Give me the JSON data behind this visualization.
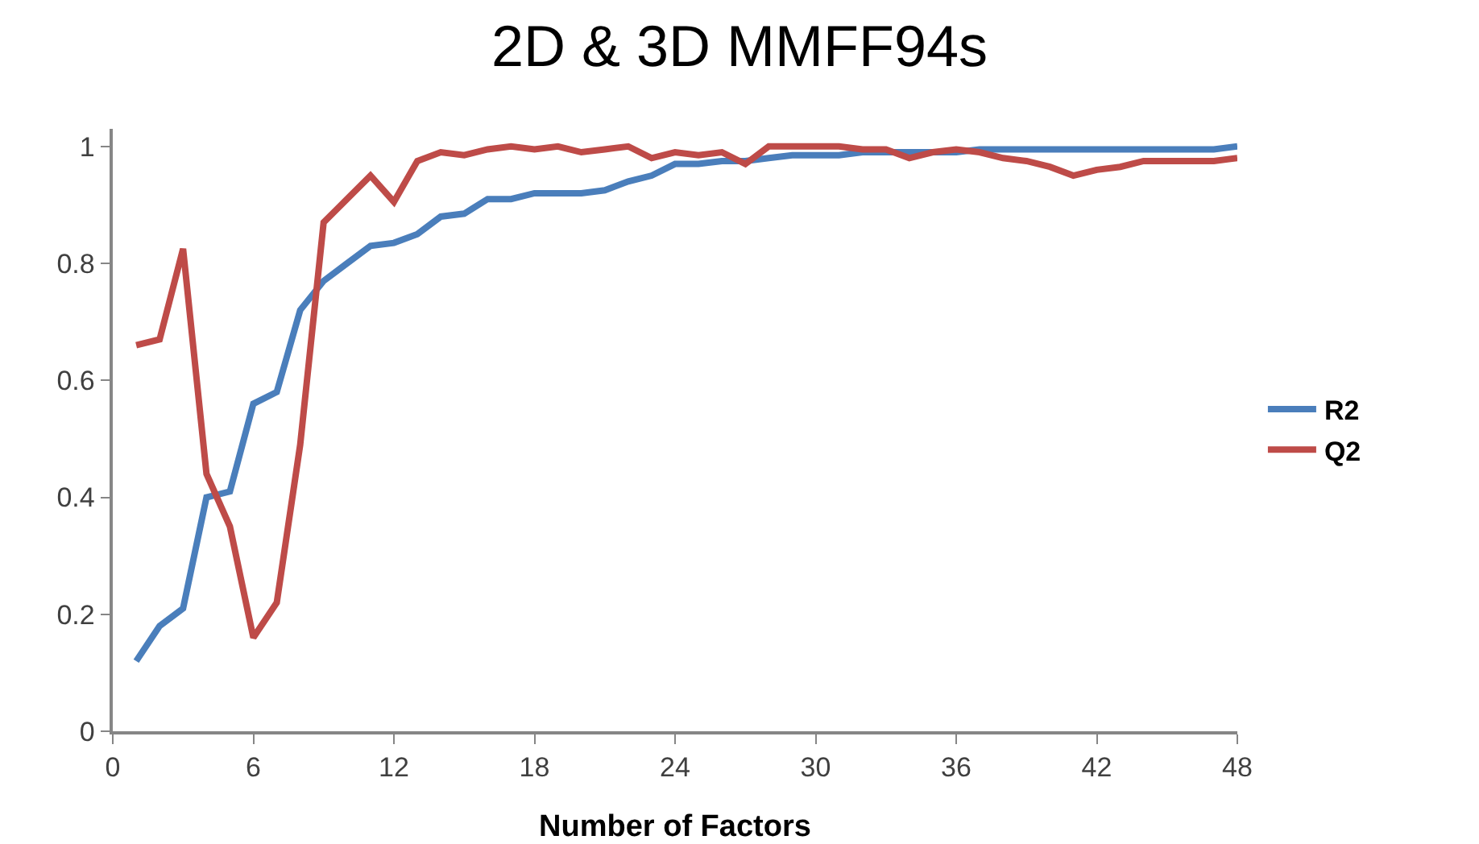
{
  "chart_data": {
    "type": "line",
    "title": "2D & 3D MMFF94s",
    "xlabel": "Number of Factors",
    "x": [
      1,
      2,
      3,
      4,
      5,
      6,
      7,
      8,
      9,
      10,
      11,
      12,
      13,
      14,
      15,
      16,
      17,
      18,
      19,
      20,
      21,
      22,
      23,
      24,
      25,
      26,
      27,
      28,
      29,
      30,
      31,
      32,
      33,
      34,
      35,
      36,
      37,
      38,
      39,
      40,
      41,
      42,
      43,
      44,
      45,
      46,
      47,
      48
    ],
    "series": [
      {
        "name": "R2",
        "color": "#4a7ebb",
        "values": [
          0.12,
          0.18,
          0.21,
          0.4,
          0.41,
          0.56,
          0.58,
          0.72,
          0.77,
          0.8,
          0.83,
          0.835,
          0.85,
          0.88,
          0.885,
          0.91,
          0.91,
          0.92,
          0.92,
          0.92,
          0.925,
          0.94,
          0.95,
          0.97,
          0.97,
          0.975,
          0.975,
          0.98,
          0.985,
          0.985,
          0.985,
          0.99,
          0.99,
          0.99,
          0.99,
          0.99,
          0.995,
          0.995,
          0.995,
          0.995,
          0.995,
          0.995,
          0.995,
          0.995,
          0.995,
          0.995,
          0.995,
          1.0
        ]
      },
      {
        "name": "Q2",
        "color": "#be4b48",
        "values": [
          0.66,
          0.67,
          0.825,
          0.44,
          0.35,
          0.16,
          0.22,
          0.49,
          0.87,
          0.91,
          0.95,
          0.905,
          0.975,
          0.99,
          0.985,
          0.995,
          1.0,
          0.995,
          1.0,
          0.99,
          0.995,
          1.0,
          0.98,
          0.99,
          0.985,
          0.99,
          0.97,
          1.0,
          1.0,
          1.0,
          1.0,
          0.995,
          0.995,
          0.98,
          0.99,
          0.995,
          0.99,
          0.98,
          0.975,
          0.965,
          0.95,
          0.96,
          0.965,
          0.975,
          0.975,
          0.975,
          0.975,
          0.98
        ]
      }
    ],
    "xlim": [
      0,
      48
    ],
    "xticks": [
      0,
      6,
      12,
      18,
      24,
      30,
      36,
      42,
      48
    ],
    "ylim": [
      0,
      1.03
    ],
    "yticks": [
      0,
      0.2,
      0.4,
      0.6,
      0.8,
      1
    ],
    "grid": false,
    "legend": "right",
    "marker": "none",
    "line_style": "solid"
  }
}
